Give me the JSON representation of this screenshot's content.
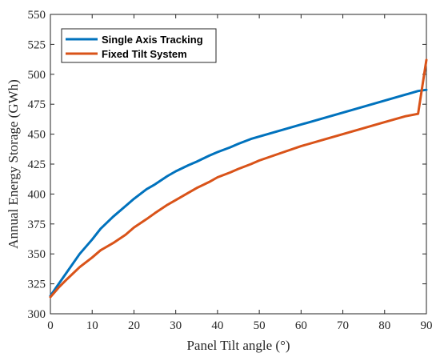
{
  "chart_data": {
    "type": "line",
    "title": "",
    "xlabel": "Panel Tilt angle (°)",
    "ylabel": "Annual Energy Storage (GWh)",
    "xlim": [
      0,
      90
    ],
    "ylim": [
      300,
      550
    ],
    "xticks": [
      0,
      10,
      20,
      30,
      40,
      50,
      60,
      70,
      80,
      90
    ],
    "yticks": [
      300,
      325,
      350,
      375,
      400,
      425,
      450,
      475,
      500,
      525,
      550
    ],
    "grid": false,
    "legend_position": "top-left",
    "series": [
      {
        "name": "Single Axis Tracking",
        "color": "#0072BD",
        "x": [
          0,
          2,
          4,
          7,
          10,
          12,
          15,
          18,
          20,
          23,
          25,
          28,
          30,
          33,
          35,
          38,
          40,
          43,
          45,
          48,
          50,
          55,
          60,
          65,
          70,
          75,
          80,
          85,
          88,
          90
        ],
        "y": [
          315,
          325,
          335,
          350,
          362,
          371,
          381,
          390,
          396,
          404,
          408,
          415,
          419,
          424,
          427,
          432,
          435,
          439,
          442,
          446,
          448,
          453,
          458,
          463,
          468,
          473,
          478,
          483,
          486,
          487
        ]
      },
      {
        "name": "Fixed Tilt System",
        "color": "#D95319",
        "x": [
          0,
          2,
          4,
          7,
          10,
          12,
          15,
          18,
          20,
          23,
          25,
          28,
          30,
          33,
          35,
          38,
          40,
          43,
          45,
          48,
          50,
          55,
          60,
          65,
          70,
          75,
          80,
          85,
          88,
          90
        ],
        "y": [
          314,
          322,
          329,
          339,
          347,
          353,
          359,
          366,
          372,
          379,
          384,
          391,
          395,
          401,
          405,
          410,
          414,
          418,
          421,
          425,
          428,
          434,
          440,
          445,
          450,
          455,
          460,
          465,
          467,
          512
        ]
      }
    ]
  }
}
